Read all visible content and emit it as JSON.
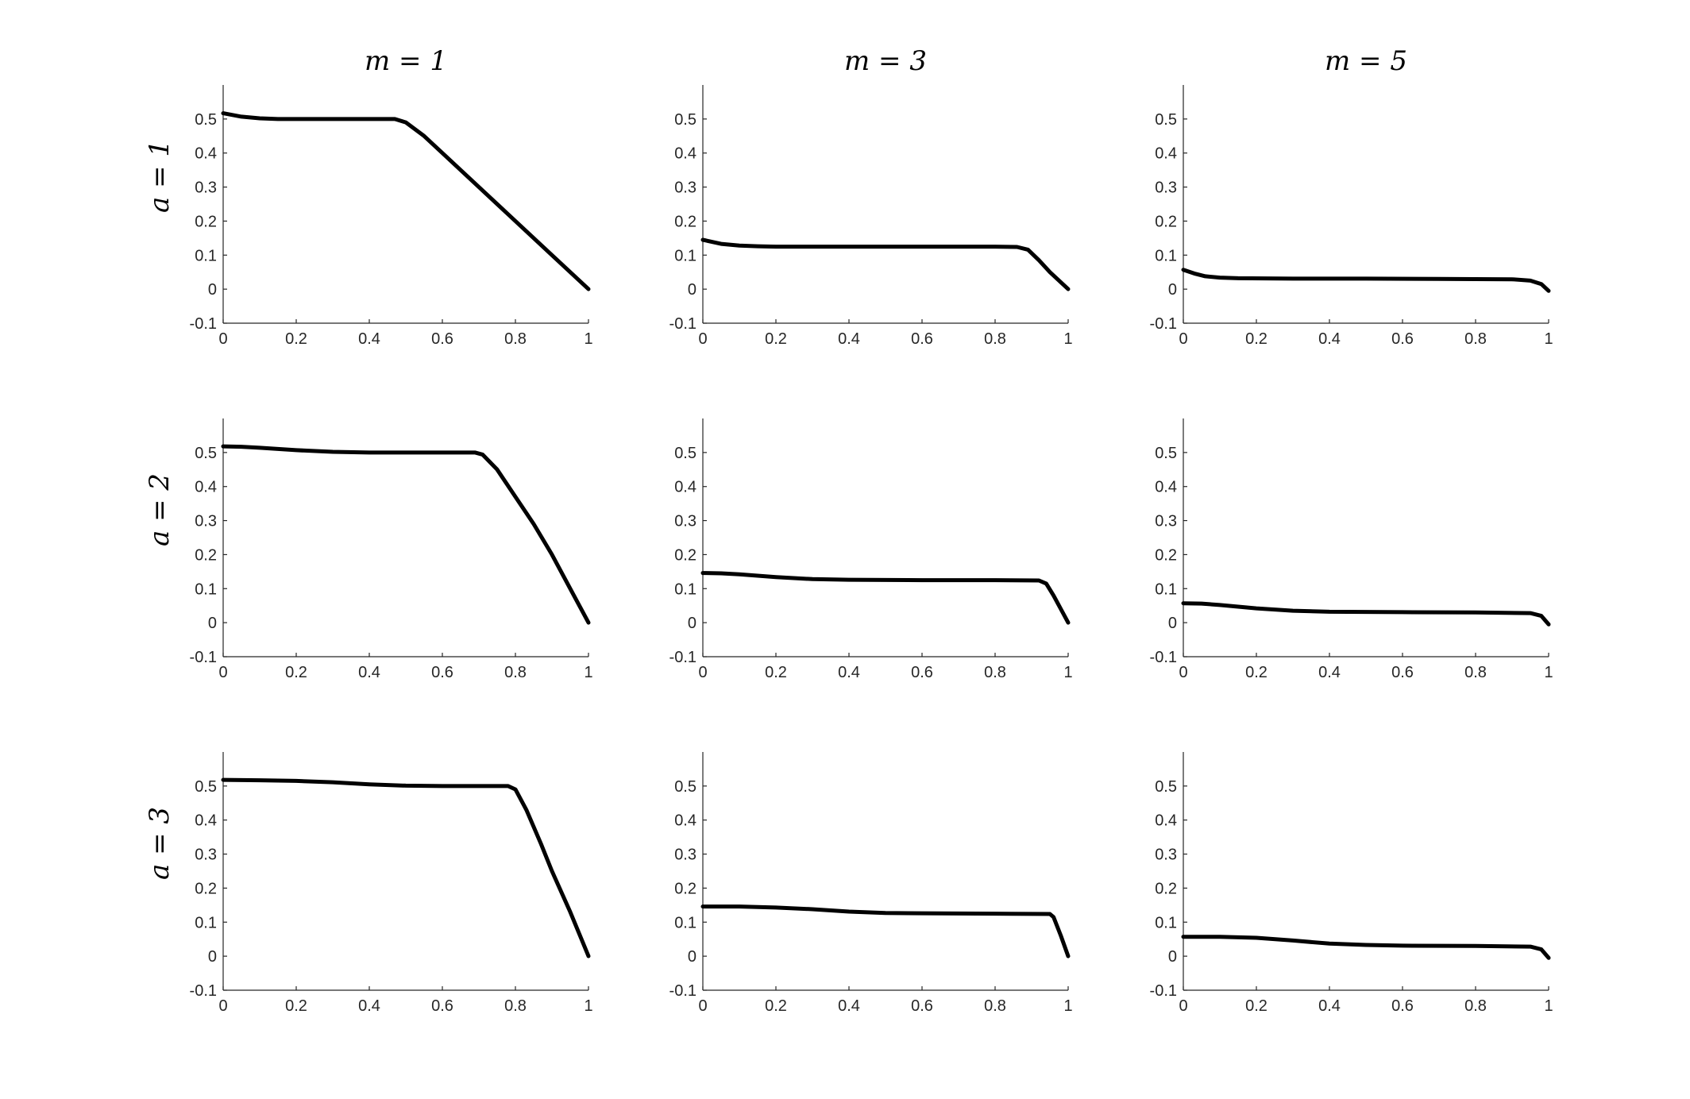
{
  "figure": {
    "col_titles": [
      "m = 1",
      "m = 3",
      "m = 5"
    ],
    "row_labels": [
      "a = 1",
      "a = 2",
      "a = 3"
    ]
  },
  "chart_data": [
    {
      "type": "line",
      "title": "m = 1",
      "ylabel": "a = 1",
      "xlim": [
        0,
        1
      ],
      "ylim": [
        -0.1,
        0.6
      ],
      "xticks": [
        "0",
        "0.2",
        "0.4",
        "0.6",
        "0.8",
        "1"
      ],
      "yticks": [
        "-0.1",
        "0",
        "0.1",
        "0.2",
        "0.3",
        "0.4",
        "0.5"
      ],
      "grid": false,
      "series": [
        {
          "color": "#000000",
          "x": [
            0,
            0.05,
            0.1,
            0.15,
            0.2,
            0.3,
            0.4,
            0.47,
            0.5,
            0.55,
            0.6,
            0.7,
            0.8,
            0.9,
            1.0
          ],
          "y": [
            0.517,
            0.507,
            0.502,
            0.5,
            0.5,
            0.5,
            0.5,
            0.5,
            0.49,
            0.45,
            0.4,
            0.3,
            0.2,
            0.1,
            0.0
          ]
        }
      ]
    },
    {
      "type": "line",
      "title": "m = 3",
      "ylabel": "",
      "xlim": [
        0,
        1
      ],
      "ylim": [
        -0.1,
        0.6
      ],
      "xticks": [
        "0",
        "0.2",
        "0.4",
        "0.6",
        "0.8",
        "1"
      ],
      "yticks": [
        "-0.1",
        "0",
        "0.1",
        "0.2",
        "0.3",
        "0.4",
        "0.5"
      ],
      "grid": false,
      "series": [
        {
          "color": "#000000",
          "x": [
            0,
            0.05,
            0.1,
            0.15,
            0.2,
            0.4,
            0.6,
            0.8,
            0.86,
            0.89,
            0.92,
            0.95,
            1.0
          ],
          "y": [
            0.145,
            0.133,
            0.128,
            0.126,
            0.125,
            0.125,
            0.125,
            0.125,
            0.124,
            0.116,
            0.085,
            0.05,
            0.0
          ]
        }
      ]
    },
    {
      "type": "line",
      "title": "m = 5",
      "ylabel": "",
      "xlim": [
        0,
        1
      ],
      "ylim": [
        -0.1,
        0.6
      ],
      "xticks": [
        "0",
        "0.2",
        "0.4",
        "0.6",
        "0.8",
        "1"
      ],
      "yticks": [
        "-0.1",
        "0",
        "0.1",
        "0.2",
        "0.3",
        "0.4",
        "0.5"
      ],
      "grid": false,
      "series": [
        {
          "color": "#000000",
          "x": [
            0,
            0.03,
            0.06,
            0.1,
            0.15,
            0.3,
            0.5,
            0.7,
            0.9,
            0.95,
            0.98,
            1.0
          ],
          "y": [
            0.057,
            0.046,
            0.038,
            0.034,
            0.032,
            0.031,
            0.031,
            0.03,
            0.029,
            0.025,
            0.015,
            -0.005
          ]
        }
      ]
    },
    {
      "type": "line",
      "title": "",
      "ylabel": "a = 2",
      "xlim": [
        0,
        1
      ],
      "ylim": [
        -0.1,
        0.6
      ],
      "xticks": [
        "0",
        "0.2",
        "0.4",
        "0.6",
        "0.8",
        "1"
      ],
      "yticks": [
        "-0.1",
        "0",
        "0.1",
        "0.2",
        "0.3",
        "0.4",
        "0.5"
      ],
      "grid": false,
      "series": [
        {
          "color": "#000000",
          "x": [
            0,
            0.05,
            0.1,
            0.2,
            0.3,
            0.4,
            0.5,
            0.6,
            0.69,
            0.71,
            0.75,
            0.8,
            0.85,
            0.9,
            0.95,
            1.0
          ],
          "y": [
            0.518,
            0.517,
            0.514,
            0.507,
            0.502,
            0.5,
            0.5,
            0.5,
            0.5,
            0.494,
            0.45,
            0.37,
            0.29,
            0.2,
            0.1,
            0.0
          ]
        }
      ]
    },
    {
      "type": "line",
      "title": "",
      "ylabel": "",
      "xlim": [
        0,
        1
      ],
      "ylim": [
        -0.1,
        0.6
      ],
      "xticks": [
        "0",
        "0.2",
        "0.4",
        "0.6",
        "0.8",
        "1"
      ],
      "yticks": [
        "-0.1",
        "0",
        "0.1",
        "0.2",
        "0.3",
        "0.4",
        "0.5"
      ],
      "grid": false,
      "series": [
        {
          "color": "#000000",
          "x": [
            0,
            0.05,
            0.1,
            0.2,
            0.3,
            0.4,
            0.6,
            0.8,
            0.92,
            0.94,
            0.96,
            0.98,
            1.0
          ],
          "y": [
            0.146,
            0.145,
            0.142,
            0.134,
            0.128,
            0.126,
            0.125,
            0.125,
            0.124,
            0.115,
            0.08,
            0.04,
            0.0
          ]
        }
      ]
    },
    {
      "type": "line",
      "title": "",
      "ylabel": "",
      "xlim": [
        0,
        1
      ],
      "ylim": [
        -0.1,
        0.6
      ],
      "xticks": [
        "0",
        "0.2",
        "0.4",
        "0.6",
        "0.8",
        "1"
      ],
      "yticks": [
        "-0.1",
        "0",
        "0.1",
        "0.2",
        "0.3",
        "0.4",
        "0.5"
      ],
      "grid": false,
      "series": [
        {
          "color": "#000000",
          "x": [
            0,
            0.05,
            0.1,
            0.2,
            0.3,
            0.4,
            0.6,
            0.8,
            0.95,
            0.98,
            1.0
          ],
          "y": [
            0.057,
            0.056,
            0.052,
            0.042,
            0.035,
            0.032,
            0.031,
            0.03,
            0.028,
            0.02,
            -0.005
          ]
        }
      ]
    },
    {
      "type": "line",
      "title": "",
      "ylabel": "a = 3",
      "xlim": [
        0,
        1
      ],
      "ylim": [
        -0.1,
        0.6
      ],
      "xticks": [
        "0",
        "0.2",
        "0.4",
        "0.6",
        "0.8",
        "1"
      ],
      "yticks": [
        "-0.1",
        "0",
        "0.1",
        "0.2",
        "0.3",
        "0.4",
        "0.5"
      ],
      "grid": false,
      "series": [
        {
          "color": "#000000",
          "x": [
            0,
            0.1,
            0.2,
            0.3,
            0.4,
            0.5,
            0.6,
            0.7,
            0.78,
            0.8,
            0.83,
            0.87,
            0.9,
            0.95,
            1.0
          ],
          "y": [
            0.518,
            0.517,
            0.515,
            0.511,
            0.505,
            0.501,
            0.5,
            0.5,
            0.5,
            0.49,
            0.43,
            0.33,
            0.25,
            0.13,
            0.0
          ]
        }
      ]
    },
    {
      "type": "line",
      "title": "",
      "ylabel": "",
      "xlim": [
        0,
        1
      ],
      "ylim": [
        -0.1,
        0.6
      ],
      "xticks": [
        "0",
        "0.2",
        "0.4",
        "0.6",
        "0.8",
        "1"
      ],
      "yticks": [
        "-0.1",
        "0",
        "0.1",
        "0.2",
        "0.3",
        "0.4",
        "0.5"
      ],
      "grid": false,
      "series": [
        {
          "color": "#000000",
          "x": [
            0,
            0.1,
            0.2,
            0.3,
            0.4,
            0.5,
            0.6,
            0.8,
            0.95,
            0.96,
            0.98,
            1.0
          ],
          "y": [
            0.146,
            0.146,
            0.143,
            0.138,
            0.131,
            0.127,
            0.126,
            0.125,
            0.124,
            0.115,
            0.06,
            0.0
          ]
        }
      ]
    },
    {
      "type": "line",
      "title": "",
      "ylabel": "",
      "xlim": [
        0,
        1
      ],
      "ylim": [
        -0.1,
        0.6
      ],
      "xticks": [
        "0",
        "0.2",
        "0.4",
        "0.6",
        "0.8",
        "1"
      ],
      "yticks": [
        "-0.1",
        "0",
        "0.1",
        "0.2",
        "0.3",
        "0.4",
        "0.5"
      ],
      "grid": false,
      "series": [
        {
          "color": "#000000",
          "x": [
            0,
            0.1,
            0.2,
            0.3,
            0.4,
            0.5,
            0.6,
            0.8,
            0.95,
            0.98,
            1.0
          ],
          "y": [
            0.057,
            0.057,
            0.054,
            0.046,
            0.037,
            0.033,
            0.031,
            0.03,
            0.028,
            0.02,
            -0.005
          ]
        }
      ]
    }
  ]
}
